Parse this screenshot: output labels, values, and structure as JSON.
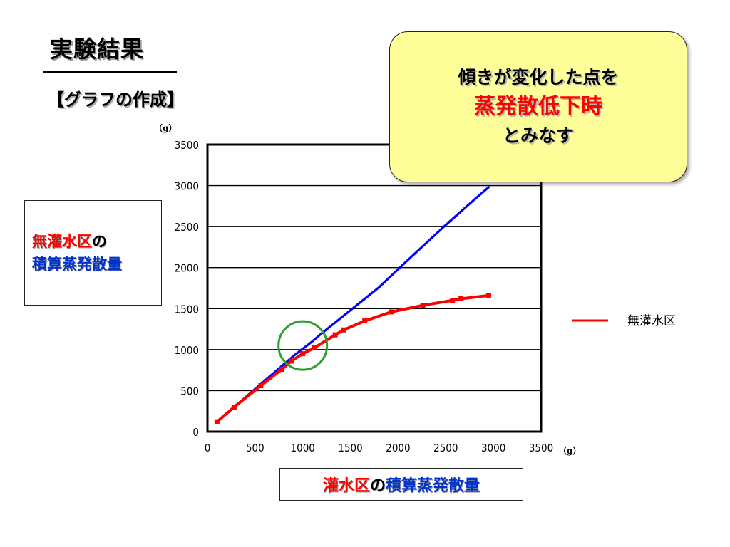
{
  "slide": {
    "title": "実験結果",
    "subtitle": "【グラフの作成】"
  },
  "callout": {
    "line1": "傾きが変化した点を",
    "line2": "蒸発散低下時",
    "line3": "とみなす"
  },
  "ylabel_box": {
    "part1": "無灌水区",
    "part2": "の",
    "part3": "積算蒸発散量"
  },
  "xlabel_box": {
    "part1": "灌水区",
    "part2": "の",
    "part3": "積算蒸発散量"
  },
  "colors": {
    "red_series": "#ff0000",
    "blue_series": "#0000ff",
    "marker_circle": "#2e9e2e",
    "callout_bg": "#ffff99"
  },
  "chart_data": {
    "type": "line",
    "x_unit": "（g）",
    "y_unit": "（g）",
    "xlim": [
      0,
      3500
    ],
    "ylim": [
      0,
      3500
    ],
    "x_ticks": [
      0,
      500,
      1000,
      1500,
      2000,
      2500,
      3000,
      3500
    ],
    "y_ticks": [
      0,
      500,
      1000,
      1500,
      2000,
      2500,
      3000,
      3500
    ],
    "grid": "horizontal",
    "legend": {
      "position": "right",
      "label": "無灌水区"
    },
    "highlight_circle": {
      "x": 1000,
      "y": 1050
    },
    "series": [
      {
        "name": "無灌水区",
        "color": "#ff0000",
        "x": [
          100,
          280,
          560,
          780,
          880,
          1000,
          1120,
          1340,
          1430,
          1650,
          1930,
          2260,
          2570,
          2660,
          2950
        ],
        "y": [
          120,
          300,
          560,
          760,
          860,
          950,
          1020,
          1180,
          1240,
          1350,
          1460,
          1540,
          1600,
          1620,
          1660
        ]
      },
      {
        "color": "#0000ff",
        "x": [
          100,
          500,
          900,
          1100,
          1200,
          1500,
          1800,
          2100,
          2500,
          2800,
          2950
        ],
        "y": [
          120,
          520,
          920,
          1100,
          1200,
          1480,
          1760,
          2090,
          2520,
          2830,
          2980
        ]
      }
    ]
  }
}
